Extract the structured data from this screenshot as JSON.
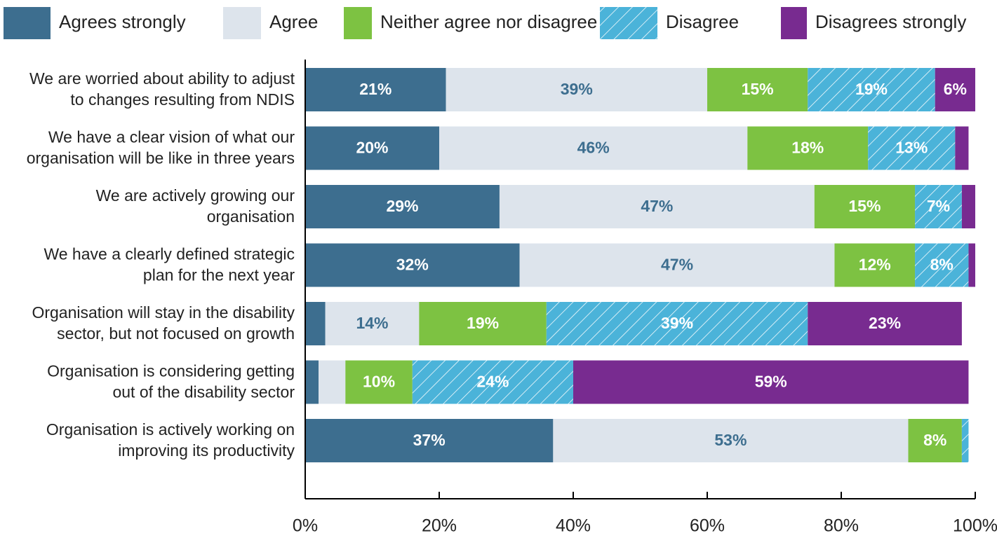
{
  "chart_data": {
    "type": "stacked-bar-horizontal",
    "categories": [
      [
        "We are worried about ability to adjust",
        "to changes resulting from NDIS"
      ],
      [
        "We have a clear vision of what our",
        "organisation will be like in three years"
      ],
      [
        "We are actively growing our",
        "organisation"
      ],
      [
        "We have a clearly defined strategic",
        "plan for the next year"
      ],
      [
        "Organisation will stay in the disability",
        "sector, but not focused on growth"
      ],
      [
        "Organisation is considering getting",
        "out of the disability sector"
      ],
      [
        "Organisation is actively working on",
        "improving its productivity"
      ]
    ],
    "series": [
      {
        "name": "Agrees strongly",
        "color": "#3d6e8f",
        "label_color": "#ffffff",
        "values": [
          21,
          20,
          29,
          32,
          3,
          2,
          37
        ],
        "value_labels": [
          "21%",
          "20%",
          "29%",
          "32%",
          null,
          null,
          "37%"
        ]
      },
      {
        "name": "Agree",
        "color": "#dde4ec",
        "label_color": "#3d6e8f",
        "values": [
          39,
          46,
          47,
          47,
          14,
          4,
          53
        ],
        "value_labels": [
          "39%",
          "46%",
          "47%",
          "47%",
          "14%",
          null,
          "53%"
        ]
      },
      {
        "name": "Neither agree nor disagree",
        "color": "#7dc242",
        "label_color": "#ffffff",
        "values": [
          15,
          18,
          15,
          12,
          19,
          10,
          8
        ],
        "value_labels": [
          "15%",
          "18%",
          "15%",
          "12%",
          "19%",
          "10%",
          "8%"
        ]
      },
      {
        "name": "Disagree",
        "color": "#4bb3d9",
        "label_color": "#ffffff",
        "hatch": true,
        "values": [
          19,
          13,
          7,
          8,
          39,
          24,
          1
        ],
        "value_labels": [
          "19%",
          "13%",
          "7%",
          "8%",
          "39%",
          "24%",
          null
        ]
      },
      {
        "name": "Disagrees strongly",
        "color": "#782b90",
        "label_color": "#ffffff",
        "values": [
          6,
          2,
          2,
          1,
          23,
          59,
          0
        ],
        "value_labels": [
          "6%",
          null,
          null,
          null,
          "23%",
          "59%",
          null
        ]
      }
    ],
    "xlim": [
      0,
      100
    ],
    "xticks": [
      {
        "value": 0,
        "label": "0%"
      },
      {
        "value": 20,
        "label": "20%"
      },
      {
        "value": 40,
        "label": "40%"
      },
      {
        "value": 60,
        "label": "60%"
      },
      {
        "value": 80,
        "label": "80%"
      },
      {
        "value": 100,
        "label": "100%"
      }
    ],
    "legend": "top"
  }
}
